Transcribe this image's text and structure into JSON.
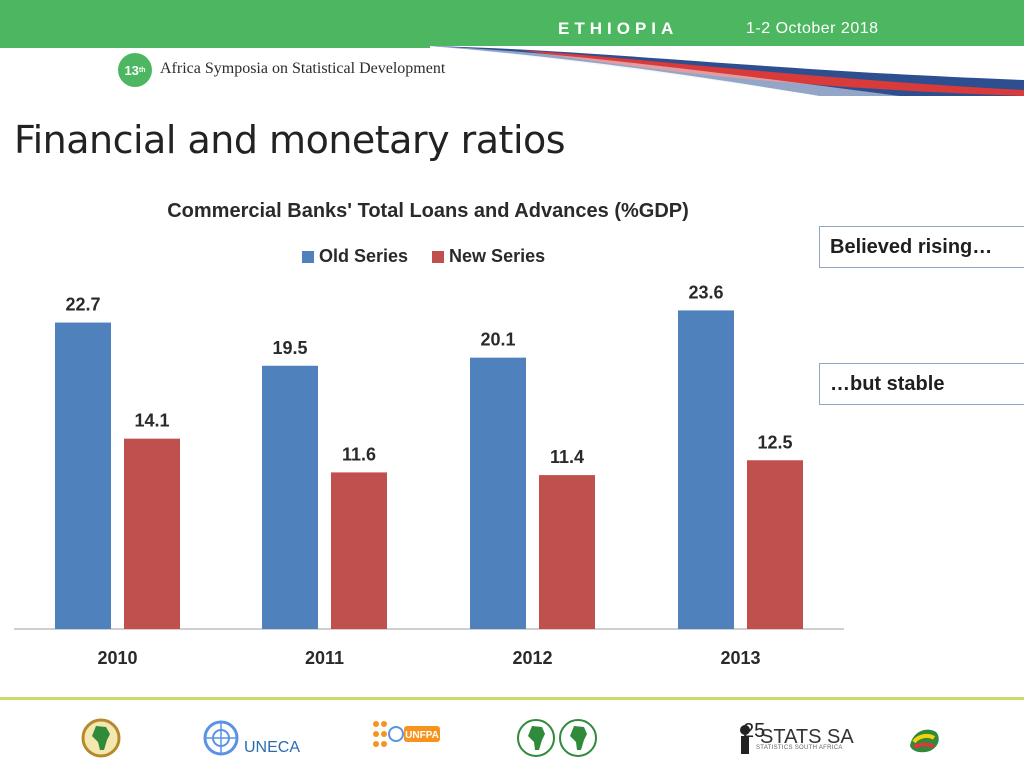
{
  "header": {
    "country": "ETHIOPIA",
    "dates": "1-2 October 2018",
    "badge_number": "13",
    "badge_suffix": "th",
    "symposium": "Africa Symposia on Statistical Development"
  },
  "slide": {
    "title": "Financial and monetary ratios",
    "page_number": "25"
  },
  "callouts": [
    "Believed rising…",
    "…but stable"
  ],
  "footer": {
    "partner_logos": [
      "african-union-logo",
      "un-logo",
      "uneca-logo",
      "unfpa-logo",
      "afdb-logo",
      "stats-sa-logo",
      "ethiopia-logo"
    ],
    "uneca": "UNECA",
    "stats_sa": "STATS SA",
    "stats_sa_sub": "STATISTICS SOUTH AFRICA"
  },
  "colors": {
    "banner_green": "#4cb760",
    "banner_blue": "#2e4f8f",
    "banner_red": "#d93a3a",
    "old_series": "#4f81bd",
    "new_series": "#c0504d",
    "footer_rule": "#c9dc6a"
  },
  "chart_data": {
    "type": "bar",
    "title": "Commercial Banks' Total  Loans and Advances (%GDP)",
    "categories": [
      "2010",
      "2011",
      "2012",
      "2013"
    ],
    "series": [
      {
        "name": "Old Series",
        "values": [
          22.7,
          19.5,
          20.1,
          23.6
        ],
        "color": "#4f81bd"
      },
      {
        "name": "New Series",
        "values": [
          14.1,
          11.6,
          11.4,
          12.5
        ],
        "color": "#c0504d"
      }
    ],
    "ylim": [
      0,
      25
    ],
    "legend": "top",
    "data_labels": true,
    "grid": false
  }
}
